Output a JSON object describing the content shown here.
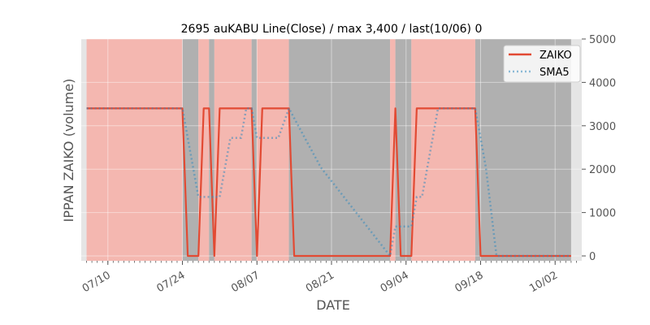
{
  "chart_data": {
    "type": "line",
    "title": "2695 auKABU Line(Close) / max 3,400 / last(10/06) 0",
    "xlabel": "DATE",
    "ylabel": "IPPAN ZAIKO (volume)",
    "ylim": [
      0,
      5000
    ],
    "y_ticks": [
      0,
      1000,
      2000,
      3000,
      4000,
      5000
    ],
    "y_tick_labels": [
      "0",
      "1000",
      "2000",
      "3000",
      "4000",
      "5000"
    ],
    "y_axis_side": "right",
    "x_range": [
      "2023-07-05",
      "2023-10-07"
    ],
    "x_ticks": [
      "2023-07-10",
      "2023-07-24",
      "2023-08-07",
      "2023-08-21",
      "2023-09-04",
      "2023-09-18",
      "2023-10-02"
    ],
    "x_tick_labels": [
      "07/10",
      "07/24",
      "08/07",
      "08/21",
      "09/04",
      "09/18",
      "10/02"
    ],
    "grid": true,
    "legend_position": "top-right",
    "colors": {
      "plot_background": "#e5e5e5",
      "zaiko": "#e24a33",
      "sma5": "#348abd",
      "shade_pink": "#f4b7b0",
      "shade_gray": "#b0b0b0"
    },
    "shaded_spans": [
      {
        "start": "2023-07-06",
        "end": "2023-07-24",
        "color": "pink"
      },
      {
        "start": "2023-07-24",
        "end": "2023-07-27",
        "color": "gray"
      },
      {
        "start": "2023-07-27",
        "end": "2023-07-29",
        "color": "pink"
      },
      {
        "start": "2023-07-29",
        "end": "2023-07-30",
        "color": "gray"
      },
      {
        "start": "2023-07-30",
        "end": "2023-08-06",
        "color": "pink"
      },
      {
        "start": "2023-08-06",
        "end": "2023-08-07",
        "color": "gray"
      },
      {
        "start": "2023-08-07",
        "end": "2023-08-13",
        "color": "pink"
      },
      {
        "start": "2023-08-13",
        "end": "2023-09-01",
        "color": "gray"
      },
      {
        "start": "2023-09-01",
        "end": "2023-09-02",
        "color": "pink"
      },
      {
        "start": "2023-09-02",
        "end": "2023-09-05",
        "color": "gray"
      },
      {
        "start": "2023-09-05",
        "end": "2023-09-17",
        "color": "pink"
      },
      {
        "start": "2023-09-17",
        "end": "2023-10-05",
        "color": "gray"
      }
    ],
    "series": [
      {
        "name": "ZAIKO",
        "style": "solid",
        "x": [
          "2023-07-06",
          "2023-07-24",
          "2023-07-25",
          "2023-07-27",
          "2023-07-28",
          "2023-07-29",
          "2023-07-30",
          "2023-07-31",
          "2023-08-06",
          "2023-08-07",
          "2023-08-08",
          "2023-08-13",
          "2023-08-14",
          "2023-09-01",
          "2023-09-02",
          "2023-09-03",
          "2023-09-05",
          "2023-09-06",
          "2023-09-17",
          "2023-09-18",
          "2023-10-05"
        ],
        "values": [
          3400,
          3400,
          0,
          0,
          3400,
          3400,
          0,
          3400,
          3400,
          0,
          3400,
          3400,
          0,
          0,
          3400,
          0,
          0,
          3400,
          3400,
          0,
          0
        ]
      },
      {
        "name": "SMA5",
        "style": "dotted",
        "x": [
          "2023-07-06",
          "2023-07-24",
          "2023-07-27",
          "2023-07-29",
          "2023-07-31",
          "2023-08-02",
          "2023-08-04",
          "2023-08-05",
          "2023-08-06",
          "2023-08-07",
          "2023-08-11",
          "2023-08-13",
          "2023-08-16",
          "2023-08-19",
          "2023-09-01",
          "2023-09-02",
          "2023-09-04",
          "2023-09-05",
          "2023-09-06",
          "2023-09-07",
          "2023-09-10",
          "2023-09-17",
          "2023-09-19",
          "2023-09-21",
          "2023-10-05"
        ],
        "values": [
          3400,
          3400,
          1360,
          1360,
          1360,
          2720,
          2720,
          3400,
          3400,
          2720,
          2720,
          3400,
          2720,
          2040,
          0,
          680,
          680,
          680,
          1360,
          1360,
          3400,
          3400,
          2040,
          0,
          0
        ]
      }
    ]
  }
}
